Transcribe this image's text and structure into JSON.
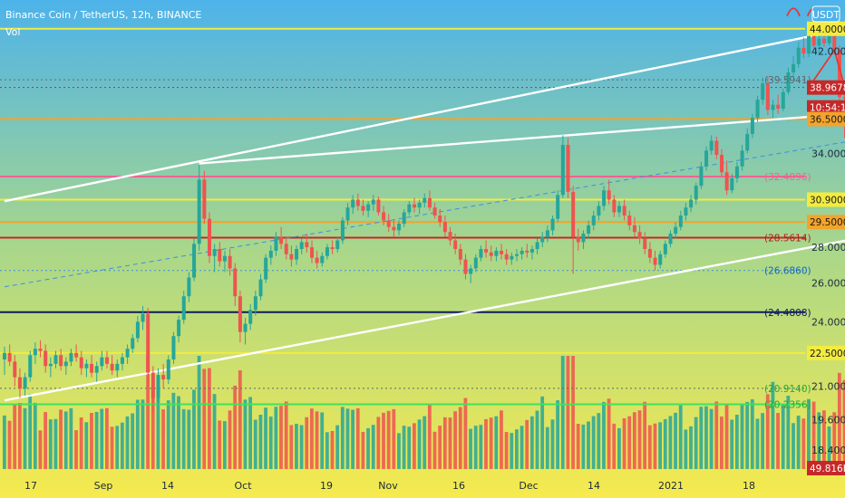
{
  "header": {
    "title": "Binance Coin / TetherUS, 12h, BINANCE",
    "indicator": "Vol",
    "currency": "USDT"
  },
  "colors": {
    "bg_top": "#4db3ea",
    "bg_mid": "#a9d78a",
    "bg_bottom": "#f6ea4e",
    "up": "#26a69a",
    "down": "#ef5350",
    "yellow_line": "#f3ec3e",
    "orange_line": "#f3a42b",
    "pink_line": "#f06292",
    "red_line": "#c62828",
    "navy_line": "#0d1b5e",
    "green_line": "#3ee35a",
    "trend_white": "#ffffff",
    "trend_blue_dashed": "#3d8fe0",
    "arrow_red": "#e53935"
  },
  "chart_data": {
    "type": "candlestick",
    "title": "Binance Coin / TetherUS, 12h, BINANCE",
    "y_scale": "log",
    "ylim": [
      17.5,
      46.7
    ],
    "grid": false,
    "x_ticks": [
      "17",
      "Sep",
      "14",
      "Oct",
      "19",
      "Nov",
      "16",
      "Dec",
      "14",
      "2021",
      "18"
    ],
    "y_ticks": [
      "44.0000",
      "42.0000",
      "34.0000",
      "28.0000",
      "26.0000",
      "24.0000",
      "21.0000",
      "19.6000",
      "18.4000"
    ],
    "price_labels": [
      {
        "text": "44.0000",
        "style": "yellow"
      },
      {
        "text": "39.5941",
        "style": "plain"
      },
      {
        "text": "38.9678",
        "style": "red"
      },
      {
        "text": "10:54:16",
        "style": "red"
      },
      {
        "text": "36.5000",
        "style": "orange"
      },
      {
        "text": "32.4096",
        "style": "pink_text"
      },
      {
        "text": "30.9000",
        "style": "yellow"
      },
      {
        "text": "29.5000",
        "style": "orange"
      },
      {
        "text": "28.5614",
        "style": "red_text"
      },
      {
        "text": "26.6860",
        "style": "blue_text"
      },
      {
        "text": "24.4808",
        "style": "navy_text"
      },
      {
        "text": "22.5000",
        "style": "yellow"
      },
      {
        "text": "20.9140",
        "style": "green_text"
      },
      {
        "text": "20.2356",
        "style": "green_text"
      },
      {
        "text": "49.816K",
        "style": "red"
      }
    ],
    "horizontal_levels": [
      {
        "value": 44.0,
        "color": "yellow",
        "style": "solid"
      },
      {
        "value": 39.5941,
        "color": "gray",
        "style": "dotted"
      },
      {
        "value": 38.9678,
        "color": "red",
        "style": "dotted"
      },
      {
        "value": 36.5,
        "color": "orange",
        "style": "solid"
      },
      {
        "value": 32.4096,
        "color": "pink",
        "style": "solid"
      },
      {
        "value": 30.9,
        "color": "yellow",
        "style": "solid"
      },
      {
        "value": 29.5,
        "color": "orange",
        "style": "solid"
      },
      {
        "value": 28.5614,
        "color": "red",
        "style": "solid"
      },
      {
        "value": 26.686,
        "color": "blue",
        "style": "dotted"
      },
      {
        "value": 24.4808,
        "color": "navy",
        "style": "solid"
      },
      {
        "value": 22.5,
        "color": "yellow",
        "style": "solid"
      },
      {
        "value": 20.914,
        "color": "gray",
        "style": "dotted"
      },
      {
        "value": 20.2356,
        "color": "green",
        "style": "solid"
      }
    ],
    "candles": [
      [
        22.2,
        22.8,
        21.5,
        22.5
      ],
      [
        22.5,
        22.9,
        21.9,
        22.1
      ],
      [
        22.1,
        22.4,
        21.0,
        21.4
      ],
      [
        21.4,
        21.8,
        20.5,
        20.9
      ],
      [
        20.9,
        21.6,
        20.6,
        21.4
      ],
      [
        21.4,
        22.6,
        21.2,
        22.4
      ],
      [
        22.4,
        23.0,
        22.0,
        22.7
      ],
      [
        22.7,
        23.1,
        22.3,
        22.6
      ],
      [
        22.6,
        22.9,
        21.6,
        21.9
      ],
      [
        21.9,
        22.3,
        21.4,
        22.0
      ],
      [
        22.0,
        22.6,
        21.8,
        22.4
      ],
      [
        22.4,
        22.7,
        21.7,
        21.9
      ],
      [
        21.9,
        22.3,
        21.5,
        22.1
      ],
      [
        22.1,
        22.7,
        21.9,
        22.5
      ],
      [
        22.5,
        22.9,
        22.1,
        22.3
      ],
      [
        22.3,
        22.6,
        21.5,
        21.8
      ],
      [
        21.8,
        22.2,
        21.4,
        22.0
      ],
      [
        22.0,
        22.4,
        21.4,
        21.6
      ],
      [
        21.6,
        22.1,
        21.2,
        21.9
      ],
      [
        21.9,
        22.6,
        21.7,
        22.3
      ],
      [
        22.3,
        22.6,
        21.8,
        22.0
      ],
      [
        22.0,
        22.4,
        21.5,
        21.7
      ],
      [
        21.7,
        22.2,
        21.4,
        22.0
      ],
      [
        22.0,
        22.5,
        21.7,
        22.3
      ],
      [
        22.3,
        22.9,
        22.0,
        22.7
      ],
      [
        22.7,
        23.4,
        22.5,
        23.2
      ],
      [
        23.2,
        24.3,
        23.0,
        24.0
      ],
      [
        24.0,
        24.8,
        23.6,
        24.4
      ],
      [
        24.4,
        24.7,
        21.0,
        21.6
      ],
      [
        21.6,
        21.9,
        19.9,
        20.5
      ],
      [
        20.5,
        21.8,
        20.2,
        21.5
      ],
      [
        21.5,
        22.0,
        20.9,
        21.3
      ],
      [
        21.3,
        22.4,
        21.1,
        22.2
      ],
      [
        22.2,
        23.5,
        22.0,
        23.3
      ],
      [
        23.3,
        24.3,
        23.0,
        24.1
      ],
      [
        24.1,
        25.6,
        23.9,
        25.3
      ],
      [
        25.3,
        26.6,
        25.0,
        26.3
      ],
      [
        26.3,
        28.5,
        26.1,
        28.2
      ],
      [
        28.2,
        33.2,
        27.8,
        32.2
      ],
      [
        32.2,
        32.8,
        29.4,
        29.7
      ],
      [
        29.7,
        30.1,
        27.1,
        27.5
      ],
      [
        27.5,
        28.2,
        26.6,
        27.9
      ],
      [
        27.9,
        28.3,
        26.9,
        27.2
      ],
      [
        27.2,
        27.8,
        26.6,
        27.5
      ],
      [
        27.5,
        27.9,
        26.4,
        26.8
      ],
      [
        26.8,
        27.1,
        24.8,
        25.3
      ],
      [
        25.3,
        25.6,
        23.0,
        23.5
      ],
      [
        23.5,
        24.2,
        22.9,
        23.9
      ],
      [
        23.9,
        24.9,
        23.6,
        24.6
      ],
      [
        24.6,
        25.6,
        24.3,
        25.3
      ],
      [
        25.3,
        26.5,
        25.1,
        26.2
      ],
      [
        26.2,
        27.6,
        26.0,
        27.4
      ],
      [
        27.4,
        28.1,
        27.0,
        27.8
      ],
      [
        27.8,
        28.9,
        27.5,
        28.6
      ],
      [
        28.6,
        29.2,
        27.9,
        28.2
      ],
      [
        28.2,
        28.6,
        27.3,
        27.6
      ],
      [
        27.6,
        28.1,
        26.9,
        27.3
      ],
      [
        27.3,
        28.1,
        27.0,
        27.9
      ],
      [
        27.9,
        28.5,
        27.6,
        28.3
      ],
      [
        28.3,
        28.8,
        27.7,
        28.0
      ],
      [
        28.0,
        28.4,
        27.1,
        27.4
      ],
      [
        27.4,
        27.8,
        26.8,
        27.1
      ],
      [
        27.1,
        27.7,
        26.9,
        27.5
      ],
      [
        27.5,
        28.2,
        27.3,
        28.0
      ],
      [
        28.0,
        28.4,
        27.6,
        27.9
      ],
      [
        27.9,
        28.6,
        27.7,
        28.4
      ],
      [
        28.4,
        29.8,
        28.2,
        29.6
      ],
      [
        29.6,
        30.7,
        29.3,
        30.4
      ],
      [
        30.4,
        31.2,
        30.0,
        30.9
      ],
      [
        30.9,
        31.3,
        30.2,
        30.5
      ],
      [
        30.5,
        30.9,
        29.9,
        30.2
      ],
      [
        30.2,
        30.8,
        29.8,
        30.6
      ],
      [
        30.6,
        31.2,
        30.2,
        30.9
      ],
      [
        30.9,
        31.1,
        29.9,
        30.1
      ],
      [
        30.1,
        30.5,
        29.3,
        29.6
      ],
      [
        29.6,
        30.0,
        28.9,
        29.2
      ],
      [
        29.2,
        29.6,
        28.6,
        29.0
      ],
      [
        29.0,
        29.6,
        28.7,
        29.4
      ],
      [
        29.4,
        30.3,
        29.2,
        30.1
      ],
      [
        30.1,
        30.8,
        29.9,
        30.6
      ],
      [
        30.6,
        31.0,
        30.1,
        30.4
      ],
      [
        30.4,
        30.9,
        30.0,
        30.7
      ],
      [
        30.7,
        31.3,
        30.4,
        31.0
      ],
      [
        31.0,
        31.5,
        30.2,
        30.4
      ],
      [
        30.4,
        30.7,
        29.7,
        29.9
      ],
      [
        29.9,
        30.3,
        29.2,
        29.5
      ],
      [
        29.5,
        29.9,
        28.6,
        28.9
      ],
      [
        28.9,
        29.2,
        28.1,
        28.4
      ],
      [
        28.4,
        28.8,
        27.6,
        27.9
      ],
      [
        27.9,
        28.2,
        27.0,
        27.3
      ],
      [
        27.3,
        27.6,
        26.2,
        26.5
      ],
      [
        26.5,
        27.0,
        26.0,
        26.8
      ],
      [
        26.8,
        27.6,
        26.6,
        27.4
      ],
      [
        27.4,
        28.1,
        27.2,
        27.9
      ],
      [
        27.9,
        28.4,
        27.4,
        27.7
      ],
      [
        27.7,
        28.1,
        27.2,
        27.5
      ],
      [
        27.5,
        28.0,
        27.2,
        27.8
      ],
      [
        27.8,
        28.2,
        27.3,
        27.6
      ],
      [
        27.6,
        27.9,
        27.0,
        27.3
      ],
      [
        27.3,
        27.7,
        27.0,
        27.5
      ],
      [
        27.5,
        27.9,
        27.2,
        27.6
      ],
      [
        27.6,
        28.0,
        27.3,
        27.8
      ],
      [
        27.8,
        28.2,
        27.4,
        27.7
      ],
      [
        27.7,
        28.1,
        27.3,
        27.9
      ],
      [
        27.9,
        28.5,
        27.6,
        28.3
      ],
      [
        28.3,
        28.9,
        28.0,
        28.6
      ],
      [
        28.6,
        29.3,
        28.3,
        29.0
      ],
      [
        29.0,
        29.9,
        28.7,
        29.7
      ],
      [
        29.7,
        31.5,
        29.5,
        31.2
      ],
      [
        31.2,
        35.3,
        31.0,
        34.6
      ],
      [
        34.6,
        35.1,
        31.0,
        31.4
      ],
      [
        31.4,
        31.8,
        26.5,
        28.6
      ],
      [
        28.6,
        29.1,
        27.8,
        28.3
      ],
      [
        28.3,
        29.0,
        27.9,
        28.8
      ],
      [
        28.8,
        29.6,
        28.5,
        29.3
      ],
      [
        29.3,
        30.2,
        29.0,
        29.9
      ],
      [
        29.9,
        30.8,
        29.6,
        30.5
      ],
      [
        30.5,
        31.8,
        30.2,
        31.5
      ],
      [
        31.5,
        32.2,
        30.6,
        30.9
      ],
      [
        30.9,
        31.2,
        29.8,
        30.1
      ],
      [
        30.1,
        30.8,
        29.8,
        30.5
      ],
      [
        30.5,
        30.9,
        29.6,
        29.9
      ],
      [
        29.9,
        30.2,
        29.0,
        29.3
      ],
      [
        29.3,
        29.8,
        28.6,
        28.9
      ],
      [
        28.9,
        29.3,
        28.2,
        28.5
      ],
      [
        28.5,
        28.9,
        27.6,
        27.9
      ],
      [
        27.9,
        28.3,
        27.1,
        27.4
      ],
      [
        27.4,
        27.8,
        26.7,
        27.0
      ],
      [
        27.0,
        27.8,
        26.8,
        27.6
      ],
      [
        27.6,
        28.4,
        27.4,
        28.2
      ],
      [
        28.2,
        29.0,
        28.0,
        28.8
      ],
      [
        28.8,
        29.5,
        28.5,
        29.2
      ],
      [
        29.2,
        30.2,
        29.0,
        29.9
      ],
      [
        29.9,
        30.7,
        29.6,
        30.4
      ],
      [
        30.4,
        31.2,
        30.1,
        30.9
      ],
      [
        30.9,
        32.0,
        30.6,
        31.8
      ],
      [
        31.8,
        33.4,
        31.6,
        33.1
      ],
      [
        33.1,
        34.5,
        32.8,
        34.2
      ],
      [
        34.2,
        35.3,
        33.9,
        34.9
      ],
      [
        34.9,
        35.2,
        33.6,
        33.9
      ],
      [
        33.9,
        34.3,
        32.4,
        32.7
      ],
      [
        32.7,
        33.5,
        31.2,
        31.5
      ],
      [
        31.5,
        32.6,
        31.3,
        32.3
      ],
      [
        32.3,
        33.4,
        32.0,
        33.1
      ],
      [
        33.1,
        34.6,
        32.8,
        34.2
      ],
      [
        34.2,
        35.8,
        34.0,
        35.4
      ],
      [
        35.4,
        36.9,
        35.1,
        36.6
      ],
      [
        36.6,
        38.3,
        36.3,
        38.0
      ],
      [
        38.0,
        39.8,
        37.6,
        39.3
      ],
      [
        39.3,
        39.9,
        36.8,
        37.2
      ],
      [
        37.2,
        38.0,
        36.6,
        37.6
      ],
      [
        37.6,
        38.4,
        36.9,
        37.3
      ],
      [
        37.3,
        38.9,
        37.1,
        38.6
      ],
      [
        38.6,
        40.6,
        38.4,
        40.2
      ],
      [
        40.2,
        41.6,
        39.7,
        40.9
      ],
      [
        40.9,
        42.8,
        40.6,
        42.3
      ],
      [
        42.3,
        43.2,
        41.4,
        41.8
      ],
      [
        41.8,
        44.4,
        41.5,
        43.9
      ],
      [
        43.9,
        44.6,
        42.1,
        42.5
      ],
      [
        42.5,
        43.4,
        41.9,
        43.1
      ],
      [
        43.1,
        43.8,
        42.4,
        42.7
      ],
      [
        42.7,
        44.3,
        42.5,
        43.9
      ],
      [
        43.9,
        44.2,
        41.7,
        42.1
      ],
      [
        42.1,
        42.5,
        37.9,
        38.2
      ],
      [
        38.2,
        38.7,
        35.1,
        38.1
      ],
      [
        38.1,
        39.6,
        37.8,
        38.97
      ]
    ],
    "volume_peaks_note": "",
    "trendlines": [
      {
        "from": [
          0,
          30.8
        ],
        "to": [
          190,
          46.5
        ],
        "color": "white"
      },
      {
        "from": [
          38,
          33.3
        ],
        "to": [
          178,
          37.3
        ],
        "color": "white"
      },
      {
        "from": [
          0,
          20.4
        ],
        "to": [
          190,
          29.9
        ],
        "color": "white"
      },
      {
        "from": [
          0,
          25.8
        ],
        "to": [
          190,
          36.5
        ],
        "color": "blue_dashed"
      }
    ],
    "projection_arrow": [
      [
        157,
        38.97
      ],
      [
        162,
        42.1
      ],
      [
        170,
        31.1
      ]
    ],
    "head_marks": [
      [
        154,
        45.6
      ],
      [
        158,
        45.6
      ]
    ]
  }
}
